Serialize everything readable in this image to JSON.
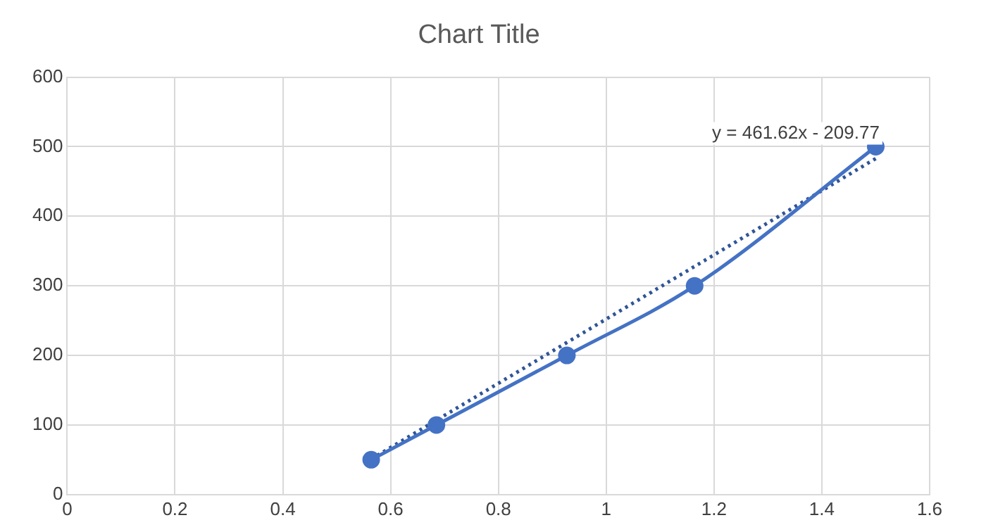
{
  "chart_data": {
    "type": "scatter",
    "title": "Chart Title",
    "series": [
      {
        "type": "line",
        "color": "#4472c4",
        "x": [
          0.564,
          0.685,
          0.927,
          1.164,
          1.5
        ],
        "values": [
          50,
          100,
          200,
          300,
          500
        ],
        "marker": "circle",
        "line_style": "solid"
      },
      {
        "type": "line",
        "color": "#2f5597",
        "x": [
          0.564,
          1.5
        ],
        "values": [
          51,
          483
        ],
        "marker": "none",
        "line_style": "dotted"
      }
    ],
    "xlim": [
      0,
      1.6
    ],
    "xticks": [
      0,
      0.2,
      0.4,
      0.6,
      0.8,
      1,
      1.2,
      1.4,
      1.6
    ],
    "ylim": [
      0,
      600
    ],
    "yticks": [
      0,
      100,
      200,
      300,
      400,
      500,
      600
    ],
    "grid": true,
    "legend": false,
    "annotations": [
      "y = 461.62x - 209.77"
    ]
  }
}
